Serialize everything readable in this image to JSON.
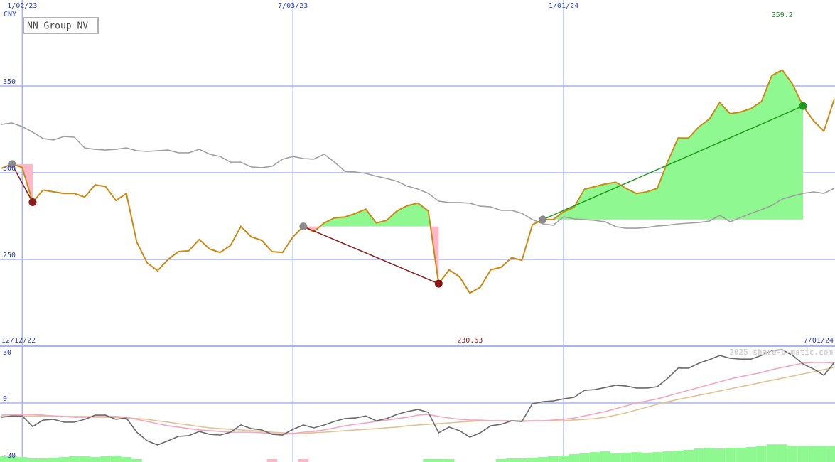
{
  "chart_data": [
    {
      "type": "line",
      "title": "NN Group NV",
      "unit": "CNY",
      "categories": [
        "12/12/22",
        null,
        "1/02/23",
        null,
        null,
        null,
        null,
        null,
        null,
        null,
        null,
        null,
        null,
        null,
        null,
        null,
        null,
        null,
        null,
        null,
        null,
        null,
        null,
        null,
        null,
        null,
        null,
        null,
        "7/03/23",
        null,
        null,
        null,
        null,
        null,
        null,
        null,
        null,
        null,
        null,
        null,
        null,
        null,
        null,
        null,
        null,
        null,
        null,
        null,
        null,
        null,
        null,
        null,
        null,
        null,
        "1/01/24",
        null,
        null,
        null,
        null,
        null,
        null,
        null,
        null,
        null,
        null,
        null,
        null,
        null,
        null,
        null,
        null,
        null,
        null,
        null,
        null,
        null,
        null,
        null,
        null,
        null,
        "7/01/24"
      ],
      "ylim": [
        200,
        399.6
      ],
      "yticks": [
        250,
        300,
        350
      ],
      "grid": true,
      "series": [
        {
          "color": "#cc8a14",
          "values": [
            302.5,
            305,
            303,
            283,
            290,
            289,
            288,
            288,
            286,
            293,
            292,
            284,
            288,
            260,
            248,
            243.5,
            250,
            254.5,
            255,
            261.5,
            256,
            254,
            258,
            269,
            263,
            261,
            254.5,
            254,
            263,
            269,
            266,
            271,
            274,
            274.5,
            276.5,
            279,
            271,
            272.5,
            278,
            281,
            282.5,
            278,
            236,
            244,
            240,
            230.6,
            234,
            244,
            245.5,
            251,
            249.5,
            270,
            273,
            273,
            277.5,
            280,
            290.5,
            292,
            293.5,
            294.5,
            291,
            288,
            289,
            291,
            306.5,
            320,
            320,
            326.5,
            331,
            340.5,
            334,
            335,
            337,
            341,
            356,
            359.2,
            351,
            338.5,
            330,
            324,
            342.5
          ]
        },
        {
          "color": "#a0a0a0",
          "values": [
            327.9,
            328.7,
            326.6,
            323.4,
            319.7,
            318.9,
            320.9,
            320.5,
            314.3,
            313.5,
            313.1,
            313.5,
            314.3,
            312.7,
            312.3,
            312.7,
            313.1,
            311.5,
            311.5,
            313.5,
            310.7,
            309.4,
            306.1,
            306.1,
            303.3,
            302.9,
            303.7,
            307.8,
            309.4,
            308.2,
            307.8,
            310.7,
            306.1,
            300.8,
            300.4,
            299.6,
            298,
            296.7,
            295.1,
            292.2,
            290.6,
            288.1,
            283.6,
            282.8,
            282.8,
            282.4,
            280.7,
            280.3,
            278.3,
            278.3,
            276.6,
            273,
            270.5,
            269.7,
            274.6,
            273.4,
            273,
            272.5,
            271.7,
            268.9,
            268,
            268,
            268.4,
            269.3,
            269.7,
            270.5,
            270.9,
            271.3,
            272.1,
            275.4,
            271.7,
            274.2,
            276.6,
            278.7,
            281.1,
            284.8,
            286.5,
            288.1,
            288.9,
            288.1,
            291
          ]
        }
      ],
      "trades": [
        {
          "x": [
            1,
            3
          ],
          "values": [
            305,
            283
          ],
          "color": "#8b1a1a"
        },
        {
          "x": [
            29,
            42
          ],
          "values": [
            269,
            236
          ],
          "color": "#8b1a1a"
        },
        {
          "x": [
            52,
            77
          ],
          "values": [
            273,
            338.5
          ],
          "color": "#1f9a1f"
        }
      ],
      "entry_color": "#8a8a8a",
      "gain_color": "#90f890",
      "loss_color": "#ffb6c8",
      "high": 359.2,
      "high_color": "#1f8a1f",
      "low": 230.63,
      "low_color": "#a01818",
      "watermark": "2025 share-o-matic.com"
    },
    {
      "type": "line",
      "ylim": [
        -31.1,
        30
      ],
      "yticks": [
        -30,
        0,
        30
      ],
      "grid": true,
      "series": [
        {
          "color": "#6a6a6a",
          "values": [
            -7.5,
            -6.8,
            -6.8,
            -12.4,
            -9,
            -8.6,
            -10.1,
            -10.1,
            -8.6,
            -6.4,
            -6.4,
            -8.6,
            -7.9,
            -15.4,
            -19.9,
            -22.1,
            -19.9,
            -17.6,
            -17.2,
            -15,
            -16.5,
            -16.9,
            -15.4,
            -11.6,
            -13.5,
            -14.2,
            -16.5,
            -16.9,
            -13.9,
            -11.6,
            -13.1,
            -11.6,
            -9.7,
            -8.2,
            -7.9,
            -6.8,
            -9.4,
            -8.2,
            -6,
            -4.5,
            -3.4,
            -4.9,
            -15.7,
            -12.7,
            -14.6,
            -18,
            -15.7,
            -12,
            -11.2,
            -9.4,
            -9.7,
            -0.4,
            0.7,
            1.1,
            2.2,
            3,
            6.7,
            7.1,
            8.2,
            9.4,
            9,
            7.9,
            7.9,
            8.6,
            13.1,
            18.4,
            18.4,
            21,
            22.9,
            25.1,
            23.6,
            23.2,
            23.2,
            25.1,
            27.7,
            28.1,
            25.1,
            20.6,
            18,
            14.6,
            21.4
          ]
        },
        {
          "color": "#f4a6c0",
          "values": [
            -6.4,
            -6.2,
            -6,
            -6,
            -6.4,
            -6.8,
            -7.1,
            -7.5,
            -7.5,
            -7.1,
            -7.1,
            -7.1,
            -7.5,
            -8.6,
            -9.7,
            -10.9,
            -12,
            -12.7,
            -13.5,
            -14.2,
            -14.6,
            -15,
            -15.4,
            -15.4,
            -15.4,
            -15.7,
            -16.1,
            -16.5,
            -16.1,
            -15.4,
            -15,
            -14.2,
            -13.1,
            -12,
            -11.2,
            -10.5,
            -9.7,
            -9,
            -8.2,
            -7.5,
            -6.4,
            -6,
            -7.1,
            -7.9,
            -8.6,
            -9,
            -9,
            -9.4,
            -9.4,
            -9.4,
            -9.7,
            -9.4,
            -9.4,
            -9,
            -8.6,
            -7.9,
            -6.8,
            -5.6,
            -4.5,
            -3,
            -1.5,
            0,
            1.1,
            2.2,
            3.7,
            5.2,
            6.7,
            8.2,
            9.7,
            11.2,
            12.7,
            13.9,
            15,
            16.1,
            17.6,
            18.8,
            19.9,
            21,
            21.4,
            21.4,
            21
          ]
        },
        {
          "color": "#e2c393",
          "values": [
            -7.1,
            -7.1,
            -6.8,
            -6.8,
            -6.8,
            -6.8,
            -7.1,
            -7.1,
            -7.1,
            -7.5,
            -7.5,
            -7.5,
            -7.9,
            -8.2,
            -8.6,
            -9.4,
            -10.1,
            -10.9,
            -11.6,
            -12.4,
            -13.1,
            -13.5,
            -13.9,
            -14.2,
            -14.6,
            -15,
            -15.4,
            -15.7,
            -16.1,
            -16.1,
            -15.7,
            -15.4,
            -15,
            -14.6,
            -14.2,
            -13.9,
            -13.5,
            -13.1,
            -12.7,
            -12,
            -11.6,
            -11.2,
            -10.9,
            -10.5,
            -10.1,
            -9.7,
            -9.4,
            -9.4,
            -9.4,
            -9.4,
            -9.4,
            -9.4,
            -9.4,
            -9.4,
            -9.4,
            -9,
            -8.6,
            -8.2,
            -7.5,
            -6.4,
            -5.2,
            -3.7,
            -2.2,
            -0.7,
            0.7,
            1.9,
            3,
            4.1,
            5.2,
            6.4,
            7.5,
            8.6,
            9.7,
            10.9,
            12,
            13.1,
            14.2,
            15.4,
            16.5,
            17.6,
            18.8
          ]
        }
      ],
      "bars": [
        {
          "color": "#90f890",
          "values": [
            -28.1,
            -28.1,
            -28.5,
            -29.2,
            -29.2,
            -28.9,
            -28.5,
            -28.1,
            -28.1,
            -28.5,
            -28.1,
            -27.7,
            -28.5,
            -29.6,
            null,
            null,
            null,
            null,
            null,
            null,
            null,
            null,
            null,
            null,
            null,
            null,
            null,
            null,
            null,
            null,
            null,
            null,
            null,
            null,
            null,
            null,
            null,
            null,
            null,
            null,
            null,
            -29.6,
            -29.6,
            -29.6,
            null,
            null,
            null,
            null,
            -29.6,
            -29.2,
            -29.2,
            -28.9,
            -28.5,
            -28.1,
            -27.7,
            -27,
            -26.6,
            -25.9,
            -25.5,
            -26.6,
            -26.2,
            -25.9,
            -26.2,
            -25.9,
            -25.5,
            -25.1,
            -24.7,
            -24,
            -23.6,
            -24,
            -23.6,
            -23.6,
            -23.2,
            -22.5,
            -21.8,
            -21.8,
            -22.5,
            -22.5,
            -22.5,
            -22.5,
            -22.5
          ]
        },
        {
          "color": "#ffb6c8",
          "values": [
            null,
            null,
            null,
            null,
            null,
            null,
            null,
            null,
            null,
            null,
            null,
            null,
            null,
            null,
            null,
            null,
            null,
            null,
            null,
            null,
            null,
            null,
            null,
            null,
            null,
            null,
            -29.6,
            null,
            null,
            -29.6,
            null,
            null,
            null,
            null,
            null,
            null,
            null,
            null,
            null,
            null,
            null,
            null,
            null,
            null,
            null,
            null,
            null,
            null,
            null,
            null,
            null,
            null,
            null,
            null,
            null,
            null,
            null,
            null,
            null,
            null,
            null,
            null,
            null,
            null,
            null,
            null,
            null,
            null,
            null,
            null,
            null,
            null,
            null,
            null,
            null,
            null,
            null,
            null,
            null,
            null,
            null
          ]
        }
      ]
    }
  ]
}
